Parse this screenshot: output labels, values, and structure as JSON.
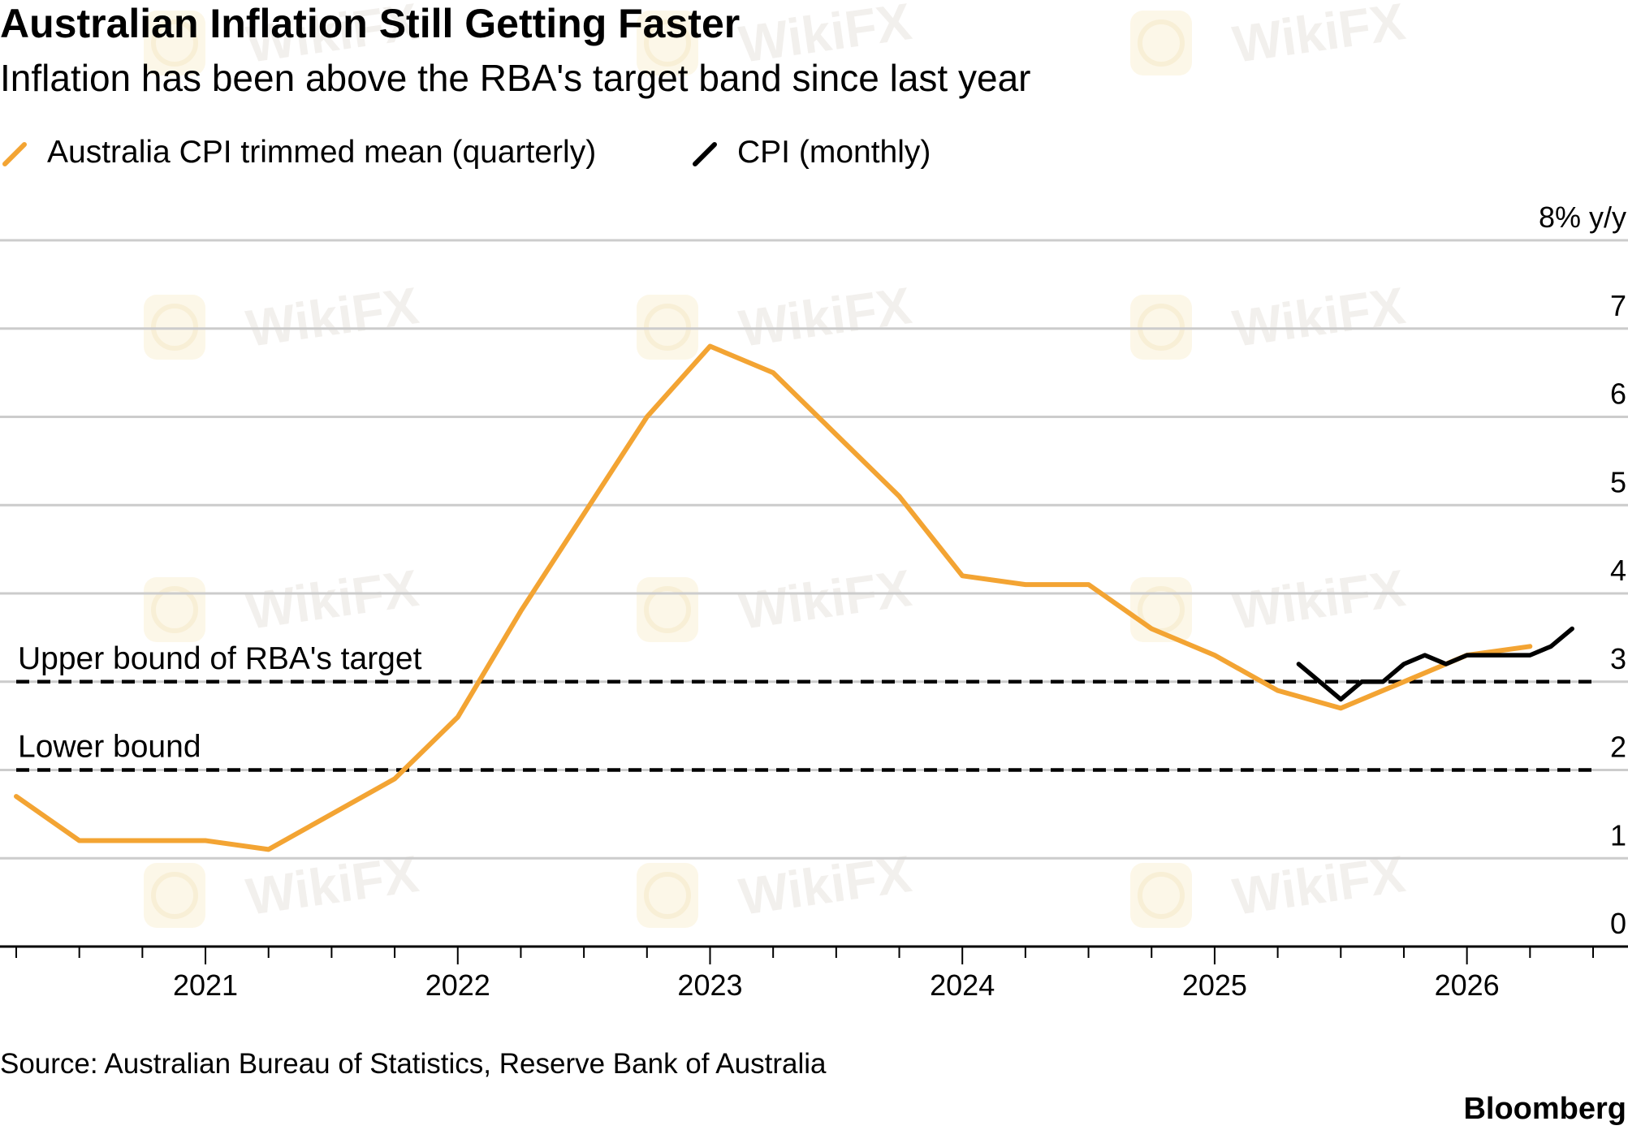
{
  "title": "Australian Inflation Still Getting Faster",
  "subtitle": "Inflation has been above the RBA's target band since last year",
  "legend": [
    {
      "label": "Australia CPI trimmed mean (quarterly)",
      "color": "#f3a433"
    },
    {
      "label": "CPI (monthly)",
      "color": "#000000"
    }
  ],
  "y_unit_label": "8% y/y",
  "source": "Source: Australian Bureau of Statistics, Reserve Bank of Australia",
  "brand": "Bloomberg",
  "watermark": "WikiFX",
  "chart_data": {
    "type": "line",
    "title": "Australian Inflation Still Getting Faster",
    "subtitle": "Inflation has been above the RBA's target band since last year",
    "ylabel": "% y/y",
    "ylim": [
      0,
      8
    ],
    "xlim": [
      2020.25,
      2026.5
    ],
    "y_ticks": [
      "0",
      "1",
      "2",
      "3",
      "4",
      "5",
      "6",
      "7",
      "8% y/y"
    ],
    "x_ticks": [
      "2021",
      "2022",
      "2023",
      "2024",
      "2025",
      "2026"
    ],
    "grid": true,
    "legend_position": "top-left",
    "series": [
      {
        "name": "Australia CPI trimmed mean (quarterly)",
        "color": "#f3a433",
        "x": [
          2020.25,
          2020.5,
          2020.75,
          2021.0,
          2021.25,
          2021.5,
          2021.75,
          2022.0,
          2022.25,
          2022.5,
          2022.75,
          2023.0,
          2023.25,
          2023.5,
          2023.75,
          2024.0,
          2024.25,
          2024.5,
          2024.75,
          2025.0,
          2025.25,
          2025.5,
          2025.75,
          2026.0,
          2026.25
        ],
        "y": [
          1.7,
          1.2,
          1.2,
          1.2,
          1.1,
          1.5,
          1.9,
          2.6,
          3.8,
          4.9,
          6.0,
          6.8,
          6.5,
          5.8,
          5.1,
          4.2,
          4.1,
          4.1,
          3.6,
          3.3,
          2.9,
          2.7,
          3.0,
          3.3,
          3.4
        ]
      },
      {
        "name": "CPI (monthly)",
        "color": "#000000",
        "x": [
          2025.333,
          2025.5,
          2025.583,
          2025.667,
          2025.75,
          2025.833,
          2025.917,
          2026.0,
          2026.083,
          2026.167,
          2026.25,
          2026.333,
          2026.417
        ],
        "y": [
          3.2,
          2.8,
          3.0,
          3.0,
          3.2,
          3.3,
          3.2,
          3.3,
          3.3,
          3.3,
          3.3,
          3.4,
          3.6
        ]
      }
    ],
    "reference_lines": [
      {
        "label": "Upper bound of RBA's target",
        "y": 3
      },
      {
        "label": "Lower bound",
        "y": 2
      }
    ]
  }
}
